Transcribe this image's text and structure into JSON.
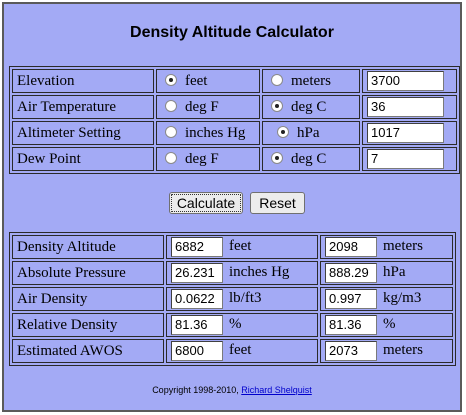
{
  "title": "Density Altitude Calculator",
  "inputs": {
    "elevation": {
      "label": "Elevation",
      "opt1": "feet",
      "opt2": "meters",
      "selected": 1,
      "value": "3700"
    },
    "air_temperature": {
      "label": "Air Temperature",
      "opt1": "deg F",
      "opt2": "deg C",
      "selected": 2,
      "value": "36"
    },
    "altimeter_setting": {
      "label": "Altimeter Setting",
      "opt1": "inches Hg",
      "opt2": "hPa",
      "selected": 2,
      "value": "1017"
    },
    "dew_point": {
      "label": "Dew Point",
      "opt1": "deg F",
      "opt2": "deg C",
      "selected": 2,
      "value": "7"
    }
  },
  "buttons": {
    "calculate": "Calculate",
    "reset": "Reset"
  },
  "outputs": {
    "density_altitude": {
      "label": "Density Altitude",
      "v1": "6882",
      "u1": "feet",
      "v2": "2098",
      "u2": "meters"
    },
    "absolute_pressure": {
      "label": "Absolute Pressure",
      "v1": "26.231",
      "u1": "inches Hg",
      "v2": "888.29",
      "u2": "hPa"
    },
    "air_density": {
      "label": "Air Density",
      "v1": "0.0622",
      "u1": "lb/ft3",
      "v2": "0.997",
      "u2": "kg/m3"
    },
    "relative_density": {
      "label": "Relative Density",
      "v1": "81.36",
      "u1": "%",
      "v2": "81.36",
      "u2": "%"
    },
    "estimated_awos": {
      "label": "Estimated AWOS",
      "v1": "6800",
      "u1": "feet",
      "v2": "2073",
      "u2": "meters"
    }
  },
  "footer": {
    "copyright": "Copyright 1998-2010, ",
    "author": "Richard Shelquist"
  }
}
